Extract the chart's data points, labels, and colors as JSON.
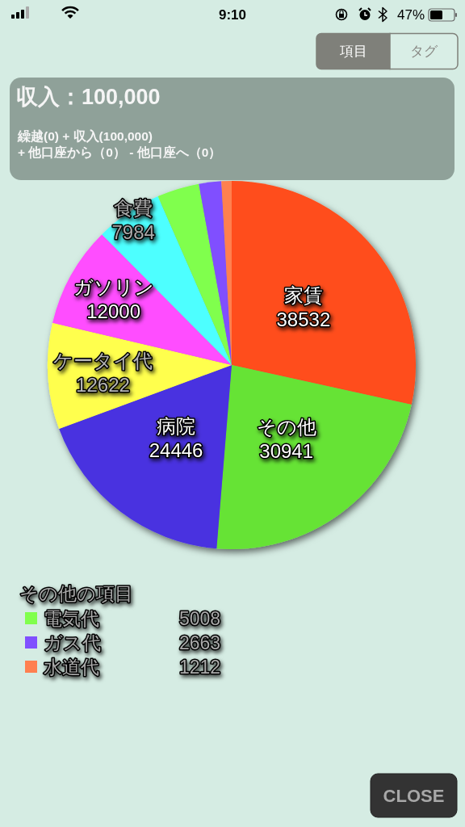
{
  "chart_data": {
    "type": "pie",
    "title": "収入：100,000",
    "subtitle": "繰越(0) + 収入(100,000)\n+ 他口座から（0） - 他口座へ（0）",
    "categories": [
      "家賃",
      "その他",
      "病院",
      "ケータイ代",
      "ガソリン",
      "食費",
      "電気代",
      "ガス代",
      "水道代"
    ],
    "values": [
      38532,
      30941,
      24446,
      12622,
      12000,
      7984,
      5008,
      2663,
      1212
    ],
    "colors": [
      "#ff4e1a",
      "#66e336",
      "#4a33e0",
      "#ffff4d",
      "#ff4dff",
      "#4dffff",
      "#80ff4d",
      "#8050ff",
      "#ff8050"
    ],
    "data_labels": true,
    "legend": "bottom left",
    "legend_title": "その他の項目",
    "annotations": [
      "9:10",
      "47%",
      "項目",
      "タグ",
      "CLOSE"
    ]
  }
}
